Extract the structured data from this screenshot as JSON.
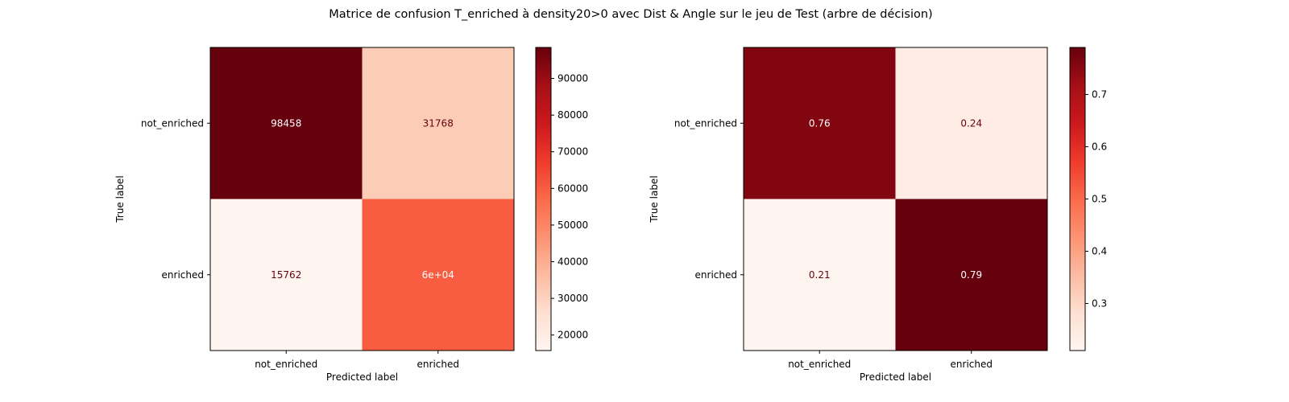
{
  "chart_data": [
    {
      "type": "heatmap",
      "title": "Matrice de confusion T_enriched à density20>0 avec Dist & Angle sur le jeu de Test (arbre de décision)",
      "panels": [
        {
          "xlabel": "Predicted label",
          "ylabel": "True label",
          "x_categories": [
            "not_enriched",
            "enriched"
          ],
          "y_categories": [
            "not_enriched",
            "enriched"
          ],
          "values": [
            [
              98458,
              31768
            ],
            [
              15762,
              60000
            ]
          ],
          "value_labels": [
            [
              "98458",
              "31768"
            ],
            [
              "15762",
              "6e+04"
            ]
          ],
          "colormap": "Reds",
          "colorbar": {
            "range": [
              15762,
              98458
            ],
            "ticks": [
              20000,
              30000,
              40000,
              50000,
              60000,
              70000,
              80000,
              90000
            ],
            "tick_labels": [
              "20000",
              "30000",
              "40000",
              "50000",
              "60000",
              "70000",
              "80000",
              "90000"
            ]
          }
        },
        {
          "xlabel": "Predicted label",
          "ylabel": "True label",
          "x_categories": [
            "not_enriched",
            "enriched"
          ],
          "y_categories": [
            "not_enriched",
            "enriched"
          ],
          "values": [
            [
              0.76,
              0.24
            ],
            [
              0.21,
              0.79
            ]
          ],
          "value_labels": [
            [
              "0.76",
              "0.24"
            ],
            [
              "0.21",
              "0.79"
            ]
          ],
          "colormap": "Reds",
          "colorbar": {
            "range": [
              0.21,
              0.79
            ],
            "ticks": [
              0.3,
              0.4,
              0.5,
              0.6,
              0.7
            ],
            "tick_labels": [
              "0.3",
              "0.4",
              "0.5",
              "0.6",
              "0.7"
            ]
          }
        }
      ]
    }
  ]
}
